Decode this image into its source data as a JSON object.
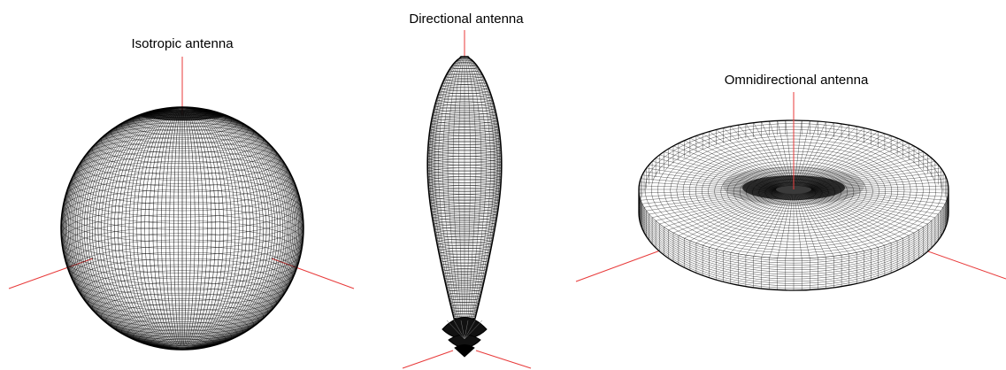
{
  "diagram": {
    "panels": [
      {
        "id": "isotropic",
        "label": "Isotropic antenna"
      },
      {
        "id": "directional",
        "label": "Directional antenna"
      },
      {
        "id": "omnidirectional",
        "label": "Omnidirectional antenna"
      }
    ],
    "colors": {
      "background": "#ffffff",
      "mesh": "#000000",
      "axis": "#e83a3a",
      "text": "#000000"
    }
  }
}
